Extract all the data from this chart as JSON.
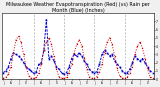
{
  "title": "Milwaukee Weather Evapotranspiration (Red) (vs) Rain per Month (Blue) (Inches)",
  "rain": [
    0.8,
    1.0,
    1.5,
    2.5,
    3.2,
    3.0,
    2.8,
    2.5,
    2.0,
    1.5,
    1.2,
    1.0,
    0.7,
    0.9,
    1.8,
    2.0,
    3.5,
    7.2,
    2.5,
    2.8,
    2.2,
    1.5,
    1.2,
    0.8,
    0.6,
    0.8,
    1.5,
    2.5,
    3.0,
    2.8,
    3.2,
    2.8,
    2.2,
    1.8,
    1.2,
    0.9,
    0.8,
    0.9,
    1.8,
    3.0,
    3.5,
    3.2,
    2.8,
    3.0,
    2.2,
    1.8,
    1.5,
    1.0,
    0.7,
    0.8,
    1.2,
    2.0,
    2.8,
    2.5,
    2.2,
    2.5,
    2.0,
    1.5,
    1.0,
    0.8
  ],
  "et": [
    0.1,
    0.2,
    0.6,
    1.5,
    3.2,
    4.8,
    5.2,
    4.5,
    3.0,
    1.5,
    0.4,
    0.1,
    0.1,
    0.2,
    0.7,
    1.8,
    3.5,
    4.5,
    5.0,
    4.2,
    2.8,
    1.2,
    0.3,
    0.1,
    0.1,
    0.2,
    0.8,
    1.8,
    3.2,
    4.2,
    4.8,
    4.0,
    2.6,
    1.2,
    0.3,
    0.1,
    0.1,
    0.3,
    0.9,
    1.8,
    3.2,
    4.5,
    5.0,
    4.2,
    2.8,
    1.3,
    0.4,
    0.1,
    0.1,
    0.2,
    0.8,
    1.5,
    3.0,
    4.0,
    4.5,
    3.8,
    2.5,
    1.2,
    0.3,
    0.1
  ],
  "rain_color": "#0000cc",
  "et_color": "#cc0000",
  "bg_color": "#f0f0f0",
  "plot_bg": "#ffffff",
  "ylim": [
    0,
    8
  ],
  "ytick_labels": [
    "0",
    "1",
    "2",
    "3",
    "4",
    "5",
    "6",
    "7"
  ],
  "ytick_vals": [
    0,
    1,
    2,
    3,
    4,
    5,
    6,
    7
  ],
  "vline_positions": [
    12,
    24,
    36,
    48
  ],
  "vline_color": "#aaaaaa",
  "title_fontsize": 3.5
}
